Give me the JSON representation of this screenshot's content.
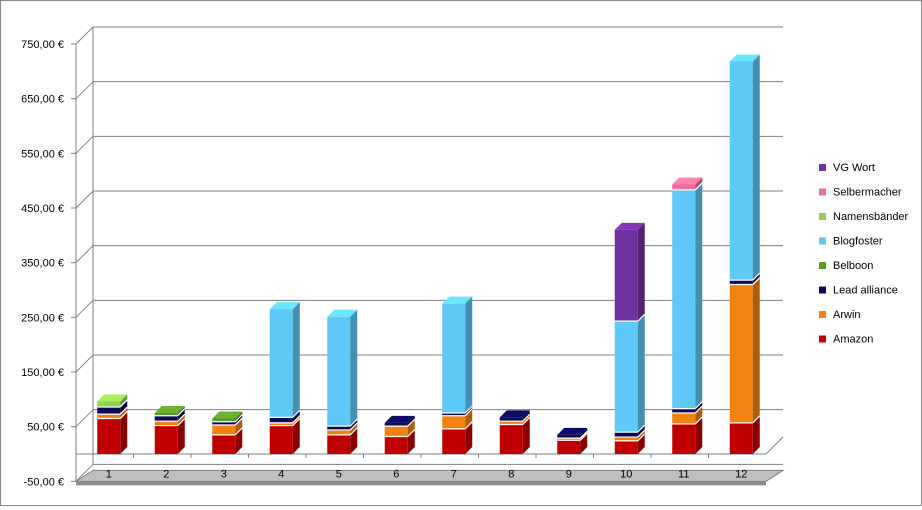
{
  "chart_data": {
    "type": "bar",
    "stacked": true,
    "categories": [
      "1",
      "2",
      "3",
      "4",
      "5",
      "6",
      "7",
      "8",
      "9",
      "10",
      "11",
      "12"
    ],
    "ylim": [
      -50,
      750
    ],
    "yticks": [
      -50,
      50,
      150,
      250,
      350,
      450,
      550,
      650,
      750
    ],
    "ytick_labels": [
      "-50,00 €",
      "50,00 €",
      "150,00 €",
      "250,00 €",
      "350,00 €",
      "450,00 €",
      "550,00 €",
      "650,00 €",
      "750,00 €"
    ],
    "grid": true,
    "legend_position": "right",
    "series": [
      {
        "name": "Amazon",
        "color": "#c00000",
        "values": [
          65,
          52,
          35,
          52,
          35,
          32,
          46,
          54,
          25,
          24,
          55,
          57
        ]
      },
      {
        "name": "Arwin",
        "color": "#f0820f",
        "values": [
          8,
          8,
          18,
          5,
          9,
          19,
          24,
          6,
          4,
          7,
          20,
          253
        ]
      },
      {
        "name": "Lead alliance",
        "color": "#0a0a5a",
        "values": [
          13,
          10,
          6,
          10,
          7,
          6,
          5,
          7,
          6,
          9,
          8,
          8
        ]
      },
      {
        "name": "Belboon",
        "color": "#5b9a2a",
        "values": [
          0,
          5,
          6,
          0,
          0,
          0,
          0,
          0,
          0,
          0,
          0,
          0
        ]
      },
      {
        "name": "Blogfoster",
        "color": "#5ec8f6",
        "values": [
          0,
          0,
          0,
          198,
          200,
          0,
          200,
          0,
          0,
          203,
          400,
          400
        ]
      },
      {
        "name": "Namensbänder",
        "color": "#92d050",
        "values": [
          10,
          0,
          0,
          0,
          0,
          0,
          0,
          0,
          0,
          0,
          0,
          0
        ]
      },
      {
        "name": "Selbermacher",
        "color": "#e8709a",
        "values": [
          0,
          0,
          0,
          0,
          0,
          0,
          0,
          0,
          0,
          0,
          10,
          0
        ]
      },
      {
        "name": "VG Wort",
        "color": "#7030a0",
        "values": [
          0,
          0,
          0,
          0,
          0,
          0,
          0,
          0,
          0,
          167,
          0,
          0
        ]
      }
    ],
    "legend_order": [
      "VG Wort",
      "Selbermacher",
      "Namensbänder",
      "Blogfoster",
      "Belboon",
      "Lead alliance",
      "Arwin",
      "Amazon"
    ]
  }
}
